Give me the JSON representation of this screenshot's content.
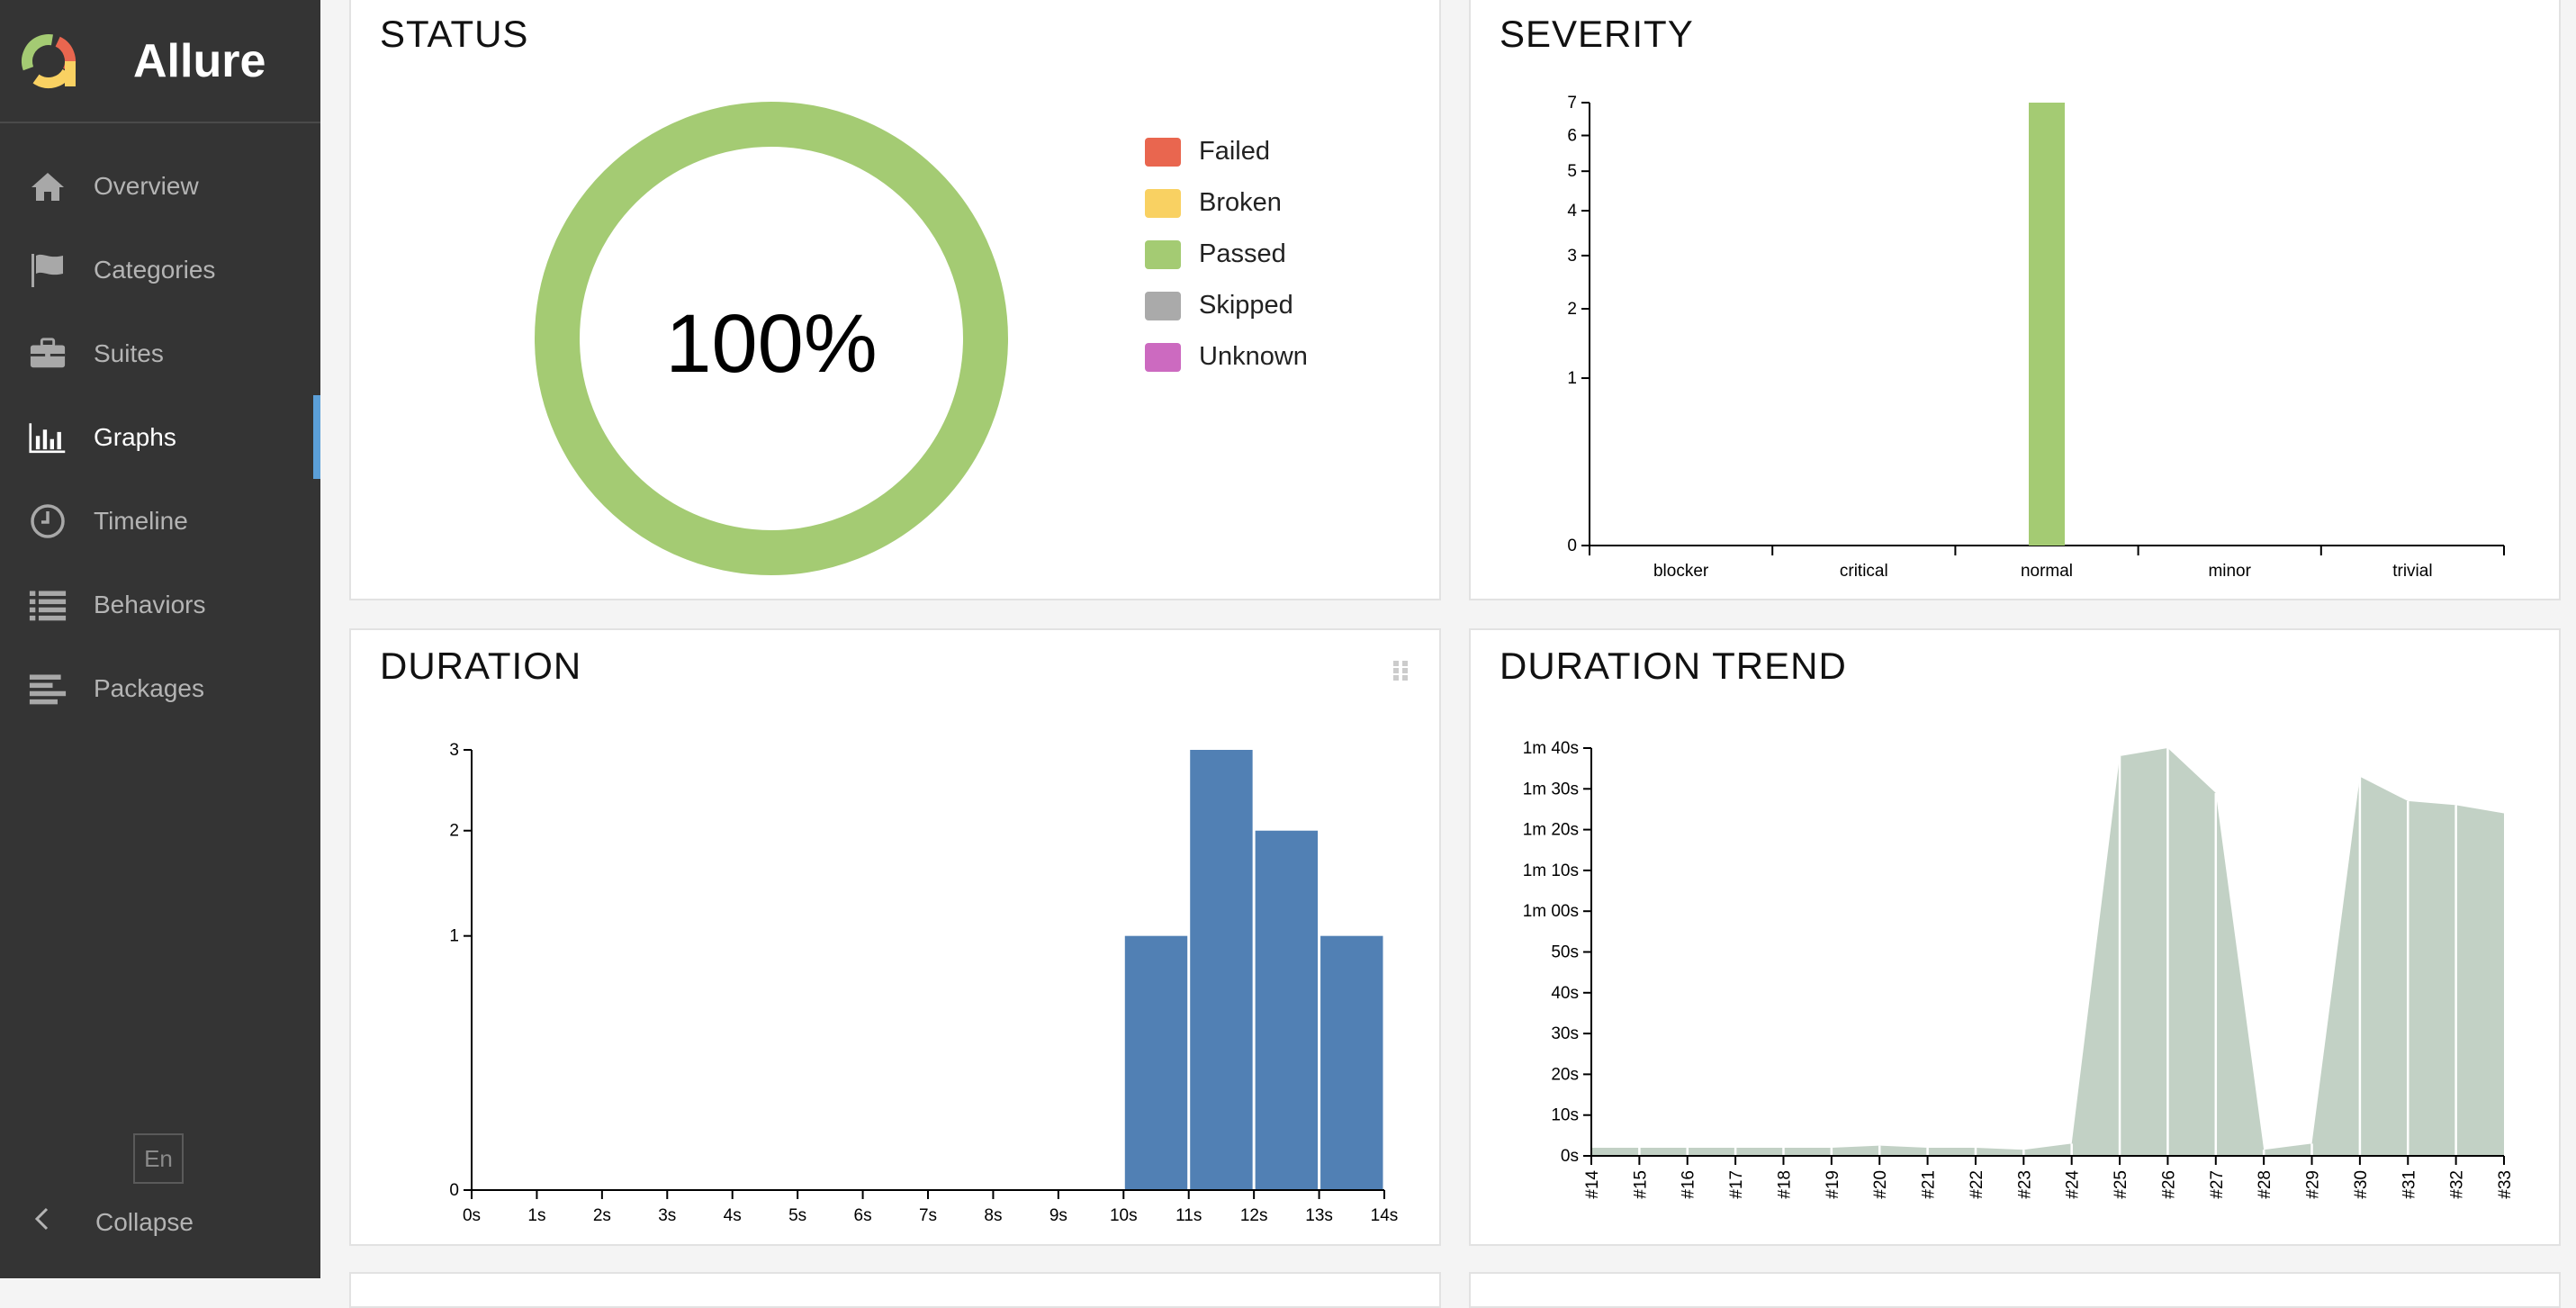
{
  "app": {
    "name": "Allure"
  },
  "sidebar": {
    "items": [
      {
        "label": "Overview",
        "icon": "home-icon",
        "active": false
      },
      {
        "label": "Categories",
        "icon": "flag-icon",
        "active": false
      },
      {
        "label": "Suites",
        "icon": "briefcase-icon",
        "active": false
      },
      {
        "label": "Graphs",
        "icon": "bar-chart-icon",
        "active": true
      },
      {
        "label": "Timeline",
        "icon": "clock-icon",
        "active": false
      },
      {
        "label": "Behaviors",
        "icon": "list-icon",
        "active": false
      },
      {
        "label": "Packages",
        "icon": "align-left-icon",
        "active": false
      }
    ],
    "language": "En",
    "collapse_label": "Collapse"
  },
  "widgets": {
    "status": {
      "title": "STATUS",
      "center_text": "100%",
      "legend": [
        {
          "label": "Failed",
          "color": "#e9664f"
        },
        {
          "label": "Broken",
          "color": "#f9d162"
        },
        {
          "label": "Passed",
          "color": "#a4cb73"
        },
        {
          "label": "Skipped",
          "color": "#aaaaaa"
        },
        {
          "label": "Unknown",
          "color": "#cc6ac0"
        }
      ]
    },
    "severity": {
      "title": "SEVERITY"
    },
    "duration": {
      "title": "DURATION"
    },
    "duration_trend": {
      "title": "DURATION TREND"
    }
  },
  "chart_data": [
    {
      "type": "pie",
      "title": "STATUS",
      "categories": [
        "Failed",
        "Broken",
        "Passed",
        "Skipped",
        "Unknown"
      ],
      "values": [
        0,
        0,
        7,
        0,
        0
      ],
      "center_label": "100%",
      "legend_position": "right"
    },
    {
      "type": "bar",
      "title": "SEVERITY",
      "categories": [
        "blocker",
        "critical",
        "normal",
        "minor",
        "trivial"
      ],
      "values": [
        0,
        0,
        7,
        0,
        0
      ],
      "y_ticks": [
        0,
        1,
        2,
        3,
        4,
        5,
        6,
        7
      ],
      "ylim": [
        0,
        7
      ],
      "y_scale": "sqrt",
      "color": "#a4cb73"
    },
    {
      "type": "bar",
      "title": "DURATION",
      "x_ticks": [
        "0s",
        "1s",
        "2s",
        "3s",
        "4s",
        "5s",
        "6s",
        "7s",
        "8s",
        "9s",
        "10s",
        "11s",
        "12s",
        "13s",
        "14s"
      ],
      "bins": [
        {
          "from": 10,
          "to": 11,
          "count": 1
        },
        {
          "from": 11,
          "to": 12,
          "count": 3
        },
        {
          "from": 12,
          "to": 13,
          "count": 2
        },
        {
          "from": 13,
          "to": 14,
          "count": 1
        }
      ],
      "x_unit": "s",
      "xlim": [
        0,
        14
      ],
      "y_ticks": [
        0,
        1,
        2,
        3
      ],
      "ylim": [
        0,
        3
      ],
      "y_scale": "sqrt",
      "color": "#5180b4"
    },
    {
      "type": "area",
      "title": "DURATION TREND",
      "categories": [
        "#14",
        "#15",
        "#16",
        "#17",
        "#18",
        "#19",
        "#20",
        "#21",
        "#22",
        "#23",
        "#24",
        "#25",
        "#26",
        "#27",
        "#28",
        "#29",
        "#30",
        "#31",
        "#32",
        "#33"
      ],
      "values": [
        2,
        2,
        2,
        2,
        2,
        2,
        2.5,
        2,
        2,
        1.5,
        3,
        98,
        100,
        89,
        1.5,
        3,
        93,
        87,
        86,
        84
      ],
      "unit": "s",
      "y_ticks": [
        "0s",
        "10s",
        "20s",
        "30s",
        "40s",
        "50s",
        "1m 00s",
        "1m 10s",
        "1m 20s",
        "1m 30s",
        "1m 40s"
      ],
      "ylim": [
        0,
        100
      ],
      "color": "#c2d1c5"
    }
  ]
}
